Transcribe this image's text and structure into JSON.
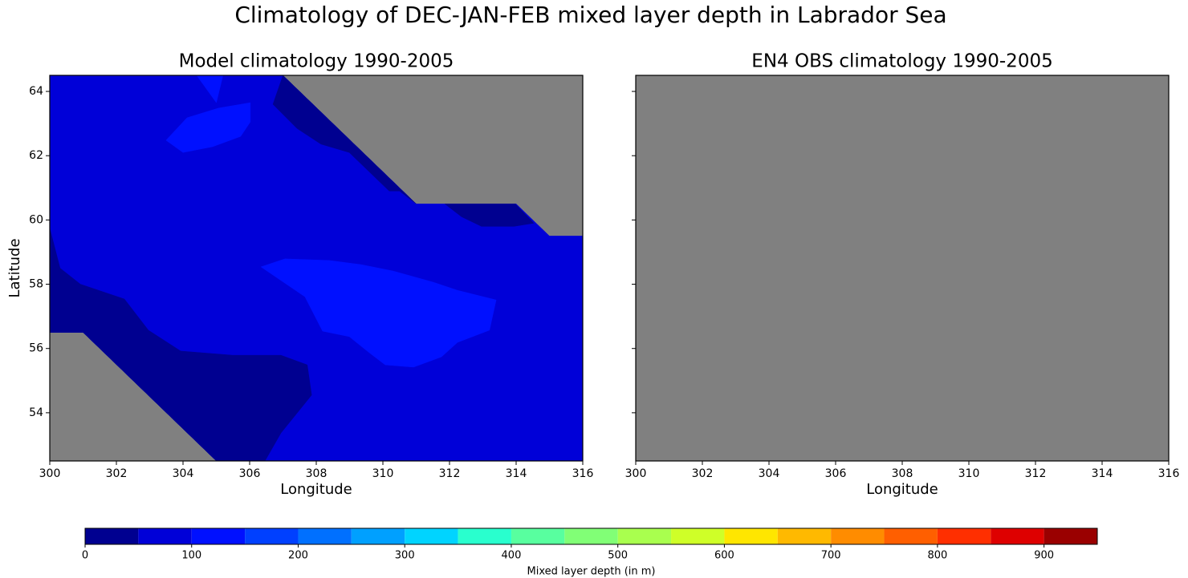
{
  "title": "Climatology of DEC-JAN-FEB mixed layer depth in Labrador Sea",
  "chart_data": [
    {
      "type": "contour",
      "title": "Model climatology 1990-2005",
      "xlabel": "Longitude",
      "ylabel": "Latitude",
      "xlim": [
        300,
        316
      ],
      "ylim": [
        52.5,
        64.5
      ],
      "xticks": [
        300,
        302,
        304,
        306,
        308,
        310,
        312,
        314,
        316
      ],
      "yticks": [
        54,
        56,
        58,
        60,
        62,
        64
      ],
      "ytick_labels": true,
      "mask_color": "#808080",
      "regions": [
        {
          "level": 50,
          "points": [
            [
              300,
              64.5
            ],
            [
              307,
              64.5
            ],
            [
              311,
              60.5
            ],
            [
              314,
              60.5
            ],
            [
              315,
              59.5
            ],
            [
              316,
              59.5
            ],
            [
              316,
              52.5
            ],
            [
              305,
              52.5
            ],
            [
              301,
              56.5
            ],
            [
              300,
              56.5
            ]
          ]
        },
        {
          "level": 0,
          "points": [
            [
              307,
              64.5
            ],
            [
              306.7,
              63.6
            ],
            [
              307.42,
              62.85
            ],
            [
              308.14,
              62.36
            ],
            [
              308.99,
              62.1
            ],
            [
              310.19,
              60.9
            ],
            [
              310.5,
              60.9
            ],
            [
              311,
              60.5
            ]
          ]
        },
        {
          "level": 0,
          "points": [
            [
              311.86,
              60.5
            ],
            [
              312.36,
              60.1
            ],
            [
              312.96,
              59.8
            ],
            [
              313.93,
              59.8
            ],
            [
              314.53,
              59.9
            ],
            [
              313.98,
              60.5
            ]
          ]
        },
        {
          "level": 0,
          "points": [
            [
              300,
              59.74
            ],
            [
              300.31,
              58.5
            ],
            [
              300.92,
              58
            ],
            [
              302.24,
              57.54
            ],
            [
              302.96,
              56.57
            ],
            [
              303.93,
              55.92
            ],
            [
              305.49,
              55.79
            ],
            [
              306.94,
              55.79
            ],
            [
              307.73,
              55.49
            ],
            [
              307.86,
              54.55
            ],
            [
              306.94,
              53.37
            ],
            [
              306.46,
              52.5
            ],
            [
              305,
              52.5
            ],
            [
              301,
              56.5
            ],
            [
              300,
              56.5
            ]
          ]
        },
        {
          "level": 100,
          "points": [
            [
              306.34,
              58.54
            ],
            [
              307.06,
              58.79
            ],
            [
              308.39,
              58.74
            ],
            [
              309.35,
              58.61
            ],
            [
              310.31,
              58.41
            ],
            [
              311.52,
              58.06
            ],
            [
              312.24,
              57.81
            ],
            [
              313.4,
              57.51
            ],
            [
              313.2,
              56.57
            ],
            [
              312.24,
              56.19
            ],
            [
              311.76,
              55.74
            ],
            [
              310.92,
              55.42
            ],
            [
              310.07,
              55.49
            ],
            [
              309.59,
              55.87
            ],
            [
              308.99,
              56.37
            ],
            [
              308.19,
              56.54
            ],
            [
              307.66,
              57.61
            ]
          ]
        },
        {
          "level": 100,
          "points": [
            [
              303.49,
              62.48
            ],
            [
              304,
              62.1
            ],
            [
              304.89,
              62.28
            ],
            [
              305.73,
              62.6
            ],
            [
              306.02,
              63.05
            ],
            [
              306.02,
              63.65
            ],
            [
              305.06,
              63.48
            ],
            [
              304.12,
              63.18
            ]
          ]
        },
        {
          "level": 100,
          "points": [
            [
              304.41,
              64.5
            ],
            [
              305,
              63.65
            ],
            [
              305.2,
              64.5
            ]
          ]
        }
      ]
    },
    {
      "type": "contour",
      "title": "EN4 OBS climatology 1990-2005",
      "xlabel": "Longitude",
      "xlim": [
        300,
        316
      ],
      "ylim": [
        52.5,
        64.5
      ],
      "xticks": [
        300,
        302,
        304,
        306,
        308,
        310,
        312,
        314,
        316
      ],
      "yticks": [
        54,
        56,
        58,
        60,
        62,
        64
      ],
      "ytick_labels": false,
      "mask_color": "#808080",
      "regions": []
    }
  ],
  "colorbar": {
    "label": "Mixed layer depth (in m)",
    "levels": [
      0,
      50,
      100,
      150,
      200,
      250,
      300,
      350,
      400,
      450,
      500,
      550,
      600,
      650,
      700,
      750,
      800,
      850,
      900,
      950
    ],
    "colors": [
      "#000090",
      "#0000d8",
      "#0010ff",
      "#0040ff",
      "#0070ff",
      "#00a0ff",
      "#00d4ff",
      "#29ffce",
      "#58ff9f",
      "#81ff76",
      "#a9ff4e",
      "#cfff28",
      "#ffe600",
      "#ffb900",
      "#ff8c00",
      "#ff5f00",
      "#ff2f00",
      "#de0000",
      "#9a0000"
    ],
    "ticks": [
      0,
      100,
      200,
      300,
      400,
      500,
      600,
      700,
      800,
      900
    ]
  }
}
